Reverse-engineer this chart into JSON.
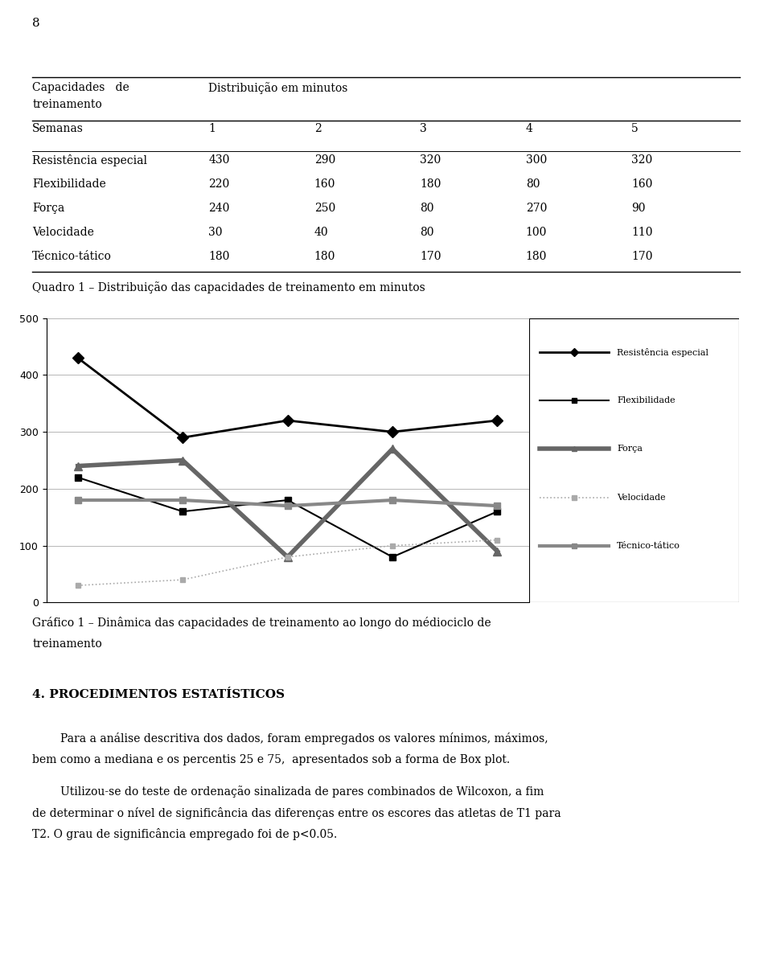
{
  "page_number": "8",
  "table_weeks": [
    "1",
    "2",
    "3",
    "4",
    "5"
  ],
  "table_rows": [
    {
      "label": "Semanas",
      "values": [
        "1",
        "2",
        "3",
        "4",
        "5"
      ],
      "is_header": true
    },
    {
      "label": "Resistência especial",
      "values": [
        "430",
        "290",
        "320",
        "300",
        "320"
      ],
      "is_header": false
    },
    {
      "label": "Flexibilidade",
      "values": [
        "220",
        "160",
        "180",
        "80",
        "160"
      ],
      "is_header": false
    },
    {
      "label": "Força",
      "values": [
        "240",
        "250",
        "80",
        "270",
        "90"
      ],
      "is_header": false
    },
    {
      "label": "Velocidade",
      "values": [
        "30",
        "40",
        "80",
        "100",
        "110"
      ],
      "is_header": false
    },
    {
      "label": "Técnico-tático",
      "values": [
        "180",
        "180",
        "170",
        "180",
        "170"
      ],
      "is_header": false
    }
  ],
  "table_data": {
    "Resistência especial": [
      430,
      290,
      320,
      300,
      320
    ],
    "Flexibilidade": [
      220,
      160,
      180,
      80,
      160
    ],
    "Força": [
      240,
      250,
      80,
      270,
      90
    ],
    "Velocidade": [
      30,
      40,
      80,
      100,
      110
    ],
    "Técnico-tático": [
      180,
      180,
      170,
      180,
      170
    ]
  },
  "quadro_caption": "Quadro 1 – Distribuição das capacidades de treinamento em minutos",
  "grafico_caption_line1": "Gráfico 1 – Dinâmica das capacidades de treinamento ao longo do médiociclo de",
  "grafico_caption_line2": "treinamento",
  "section_title": "4. PROCEDIMENTOS ESTATÍSTICOS",
  "paragraph1_indent": "        Para a análise descritiva dos dados, foram empregados os valores mínimos, máximos,",
  "paragraph1_cont": "bem como a mediana e os percentis 25 e 75,  apresentados sob a forma de Box plot.",
  "paragraph2_indent": "        Utilizou-se do teste de ordenação sinalizada de pares combinados de Wilcoxon, a fim",
  "paragraph2_cont1": "de determinar o nível de significância das diferenças entre os escores das atletas de T1 para",
  "paragraph2_cont2": "T2. O grau de significância empregado foi de p<0.05.",
  "ylim": [
    0,
    500
  ],
  "yticks": [
    0,
    100,
    200,
    300,
    400,
    500
  ],
  "series_names": [
    "Resistência especial",
    "Flexibilidade",
    "Força",
    "Velocidade",
    "Técnico-tático"
  ],
  "line_colors": [
    "#000000",
    "#000000",
    "#666666",
    "#aaaaaa",
    "#888888"
  ],
  "line_widths": [
    2.0,
    1.5,
    4.0,
    1.2,
    3.0
  ],
  "line_styles": [
    "-",
    "-",
    "-",
    ":",
    "-"
  ],
  "markers": [
    "D",
    "s",
    "^",
    "s",
    "s"
  ],
  "marker_sizes": [
    7,
    6,
    7,
    5,
    6
  ],
  "bg_color": "#ffffff"
}
